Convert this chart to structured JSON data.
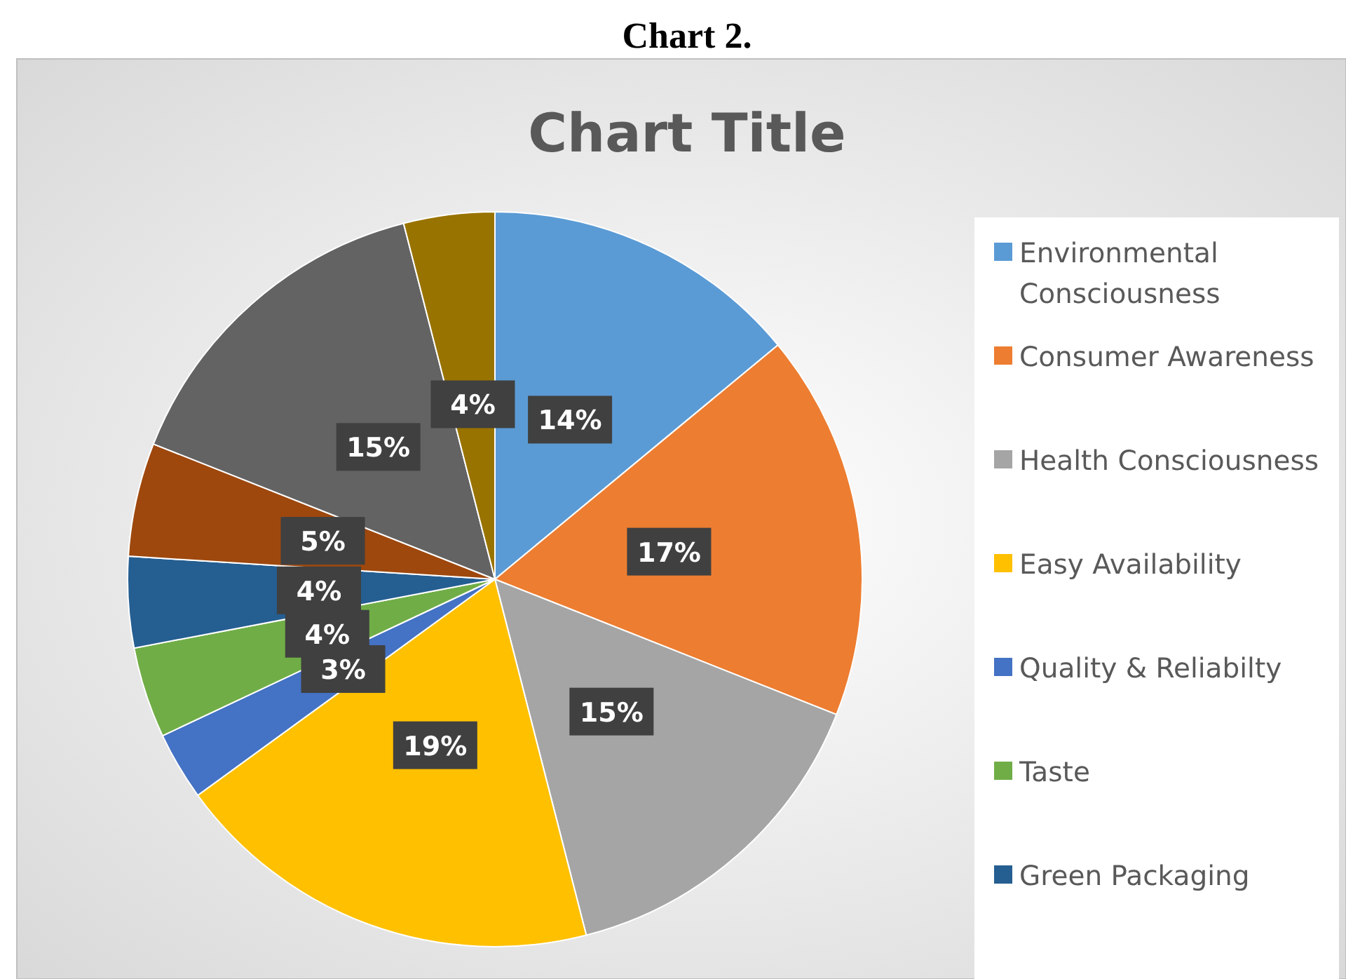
{
  "chart_data": {
    "type": "pie",
    "title": "Chart Title",
    "annotations": [
      "Chart 2."
    ],
    "categories": [
      "Environmental Consciousness",
      "Consumer Awareness",
      "Health Consciousness",
      "Easy Availability",
      "Quality & Reliabilty",
      "Taste",
      "Green Packaging",
      null,
      null,
      null
    ],
    "values": [
      14,
      17,
      15,
      19,
      3,
      4,
      4,
      5,
      15,
      4
    ],
    "value_labels": [
      "14%",
      "17%",
      "15%",
      "19%",
      "3%",
      "4%",
      "4%",
      "5%",
      "15%",
      "4%"
    ],
    "colors": [
      "#5b9bd5",
      "#ed7d31",
      "#a5a5a5",
      "#ffc000",
      "#4472c4",
      "#70ad47",
      "#255e91",
      "#9e480e",
      "#636363",
      "#997300"
    ],
    "legend": "right"
  }
}
